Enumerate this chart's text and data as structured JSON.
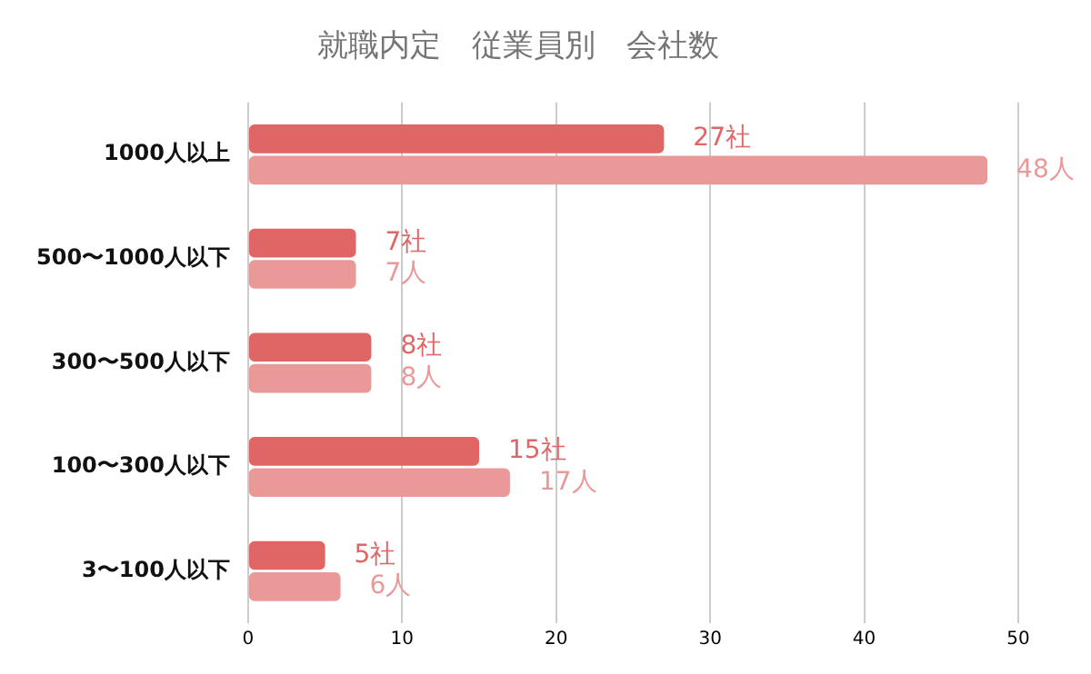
{
  "chart_data": {
    "type": "bar",
    "orientation": "horizontal",
    "title": "就職内定　従業員別　会社数",
    "categories": [
      "1000人以上",
      "500〜1000人以下",
      "300〜500人以下",
      "100〜300人以下",
      "3〜100人以下"
    ],
    "series": [
      {
        "color": "#e06666",
        "values": [
          27,
          7,
          8,
          15,
          5
        ],
        "value_labels": [
          "27社",
          "7社",
          "8社",
          "15社",
          "5社"
        ]
      },
      {
        "color": "#ea9999",
        "values": [
          48,
          7,
          8,
          17,
          6
        ],
        "value_labels": [
          "48人",
          "7人",
          "8人",
          "17人",
          "6人"
        ]
      }
    ],
    "xlim": [
      0,
      50
    ],
    "xticks": [
      0,
      10,
      20,
      30,
      40,
      50
    ],
    "grid": "x"
  }
}
